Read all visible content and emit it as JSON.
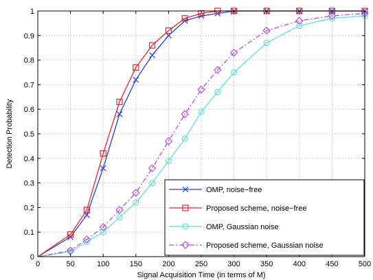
{
  "chart_data": {
    "type": "line",
    "title": "",
    "xlabel": "Signal Acquisition Time (in terms of M)",
    "ylabel": "Detection Probability",
    "xlim": [
      0,
      500
    ],
    "ylim": [
      0,
      1
    ],
    "xticks": [
      0,
      50,
      100,
      150,
      200,
      250,
      300,
      350,
      400,
      450,
      500
    ],
    "yticks": [
      0,
      0.1,
      0.2,
      0.3,
      0.4,
      0.5,
      0.6,
      0.7,
      0.8,
      0.9,
      1
    ],
    "grid": true,
    "legend_position": "bottom-right",
    "series": [
      {
        "name": "OMP, noise−free",
        "color": "#1f3fd6",
        "line_style": "solid",
        "marker": "x",
        "x": [
          0,
          50,
          75,
          100,
          125,
          150,
          175,
          200,
          225,
          250,
          275,
          300,
          350,
          400,
          450,
          500
        ],
        "y": [
          0,
          0.08,
          0.17,
          0.36,
          0.58,
          0.72,
          0.82,
          0.9,
          0.96,
          0.98,
          0.99,
          1.0,
          1.0,
          1.0,
          1.0,
          1.0
        ]
      },
      {
        "name": "Proposed scheme, noise−free",
        "color": "#e8232a",
        "line_style": "solid",
        "marker": "square",
        "x": [
          0,
          50,
          75,
          100,
          125,
          150,
          175,
          200,
          225,
          250,
          275,
          300,
          350,
          400,
          450,
          500
        ],
        "y": [
          0,
          0.09,
          0.19,
          0.42,
          0.63,
          0.77,
          0.86,
          0.92,
          0.97,
          0.99,
          1.0,
          1.0,
          1.0,
          1.0,
          1.0,
          1.0
        ]
      },
      {
        "name": "OMP, Gaussian noise",
        "color": "#5fe0d6",
        "line_style": "solid",
        "marker": "circle",
        "x": [
          0,
          50,
          75,
          100,
          125,
          150,
          175,
          200,
          225,
          250,
          275,
          300,
          350,
          400,
          450,
          500
        ],
        "y": [
          0,
          0.02,
          0.06,
          0.1,
          0.16,
          0.22,
          0.3,
          0.39,
          0.48,
          0.59,
          0.67,
          0.75,
          0.87,
          0.94,
          0.97,
          0.98
        ]
      },
      {
        "name": "Proposed scheme, Gaussian noise",
        "color": "#b84ce0",
        "line_style": "dashdot",
        "marker": "diamond",
        "x": [
          0,
          50,
          75,
          100,
          125,
          150,
          175,
          200,
          225,
          250,
          275,
          300,
          350,
          400,
          450,
          500
        ],
        "y": [
          0,
          0.025,
          0.07,
          0.12,
          0.19,
          0.26,
          0.36,
          0.47,
          0.58,
          0.68,
          0.76,
          0.83,
          0.92,
          0.96,
          0.98,
          0.99
        ]
      }
    ]
  }
}
